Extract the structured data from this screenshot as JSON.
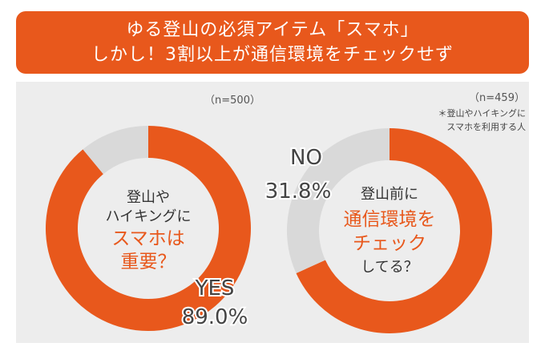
{
  "title": {
    "line1": "ゆる登山の必須アイテム「スマホ」",
    "line2": "しかし！3割以上が通信環境をチェックせず"
  },
  "colors": {
    "accent": "#E8581C",
    "rest": "#D9D9D9",
    "panel": "#EDEDED",
    "text": "#333333"
  },
  "chart_data": [
    {
      "type": "pie",
      "sample": "（n=500）",
      "question": [
        "登山や",
        "ハイキングに"
      ],
      "question_highlight": [
        "スマホは"
      ],
      "question_tail": "重要？",
      "slices": [
        {
          "label": "YES",
          "value": 89.0,
          "value_label": "89.0%",
          "color": "#E8581C"
        },
        {
          "value": 11.0,
          "color": "#D9D9D9"
        }
      ]
    },
    {
      "type": "pie",
      "sample": "（n=459）",
      "note": [
        "＊登山やハイキングに",
        "スマホを利用する人"
      ],
      "question": [
        "登山前に"
      ],
      "question_highlight": [
        "通信環境を",
        "チェック"
      ],
      "question_tail": "してる？",
      "slices": [
        {
          "value": 68.2,
          "color": "#E8581C"
        },
        {
          "label": "NO",
          "value": 31.8,
          "value_label": "31.8%",
          "color": "#D9D9D9"
        }
      ]
    }
  ]
}
